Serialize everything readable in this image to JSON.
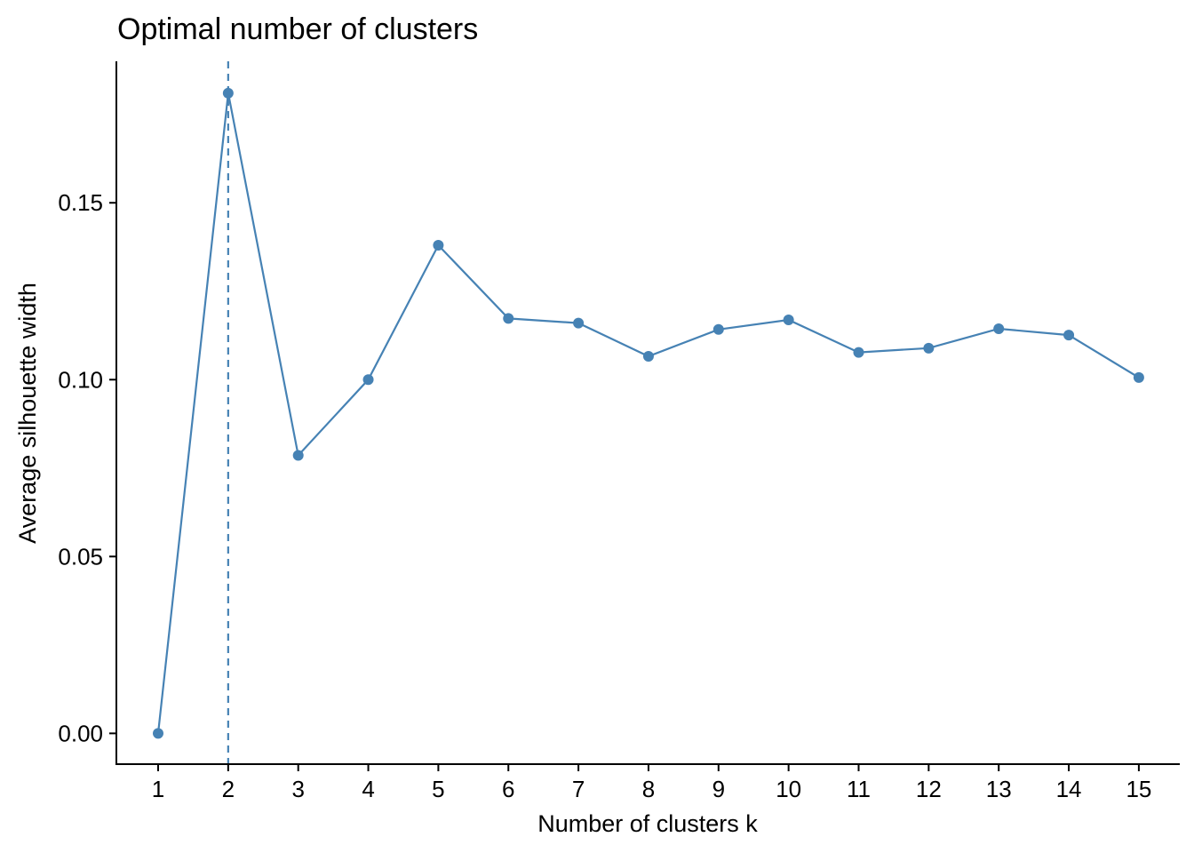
{
  "chart_data": {
    "type": "line",
    "title": "Optimal number of clusters",
    "xlabel": "Number of clusters k",
    "ylabel": "Average silhouette width",
    "categories": [
      "1",
      "2",
      "3",
      "4",
      "5",
      "6",
      "7",
      "8",
      "9",
      "10",
      "11",
      "12",
      "13",
      "14",
      "15"
    ],
    "series": [
      {
        "values": [
          0.0,
          0.181,
          0.0786,
          0.1,
          0.138,
          0.1173,
          0.116,
          0.1066,
          0.1142,
          0.1169,
          0.1077,
          0.1089,
          0.1144,
          0.1126,
          0.1006
        ]
      }
    ],
    "yticks": [
      0.0,
      0.05,
      0.1,
      0.15
    ],
    "ytick_labels": [
      "0.00",
      "0.05",
      "0.10",
      "0.15"
    ],
    "ylim": [
      -0.0087,
      0.19
    ],
    "optimal_k": 2,
    "reference_line": "vertical dashed at k = 2",
    "grid": false,
    "legend": "none",
    "color": "#4682B4"
  }
}
